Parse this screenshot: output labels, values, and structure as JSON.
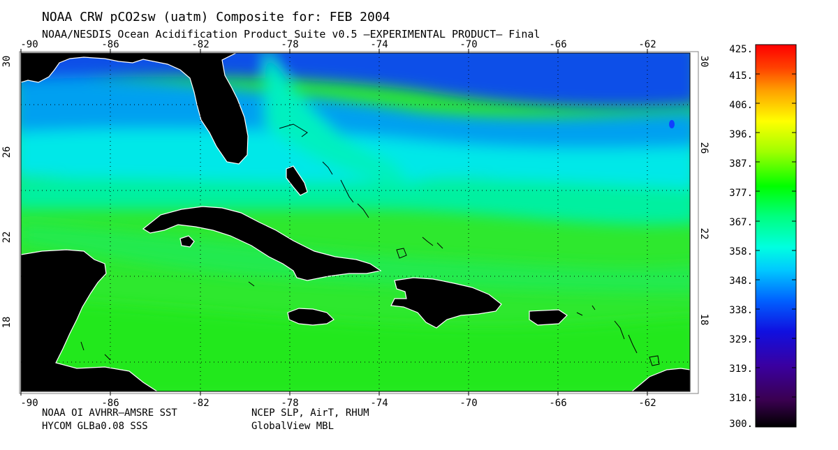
{
  "header": {
    "title": "NOAA CRW pCO2sw (uatm) Composite for: FEB 2004",
    "subtitle": "NOAA/NESDIS Ocean Acidification Product Suite  v0.5 —EXPERIMENTAL PRODUCT—    Final"
  },
  "axes": {
    "lon_ticks": [
      "-90",
      "-86",
      "-82",
      "-78",
      "-74",
      "-70",
      "-66",
      "-62"
    ],
    "lat_ticks": [
      "30",
      "26",
      "22",
      "18"
    ]
  },
  "colorbar": {
    "labels": [
      "425.",
      "415.",
      "406.",
      "396.",
      "387.",
      "377.",
      "367.",
      "358.",
      "348.",
      "338.",
      "329.",
      "319.",
      "310.",
      "300."
    ]
  },
  "footer": {
    "left_line1": "NOAA OI AVHRR—AMSRE SST",
    "left_line2": "HYCOM GLBa0.08 SSS",
    "right_line1": "NCEP SLP, AirT, RHUM",
    "right_line2": "GlobalView MBL"
  }
}
